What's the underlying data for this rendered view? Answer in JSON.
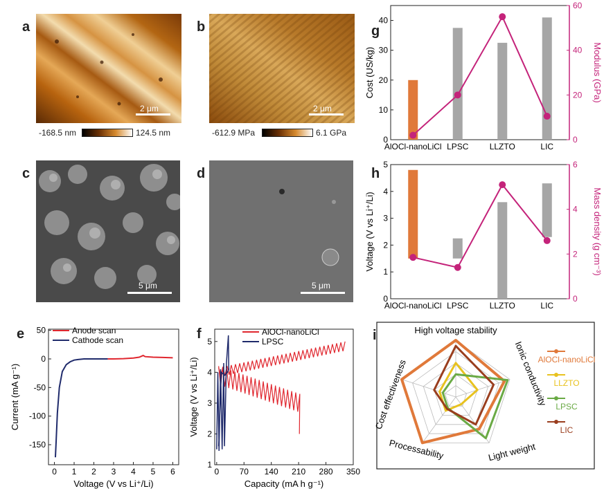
{
  "panels": {
    "a": {
      "label": "a",
      "scale": "2 μm",
      "cb_min": "-168.5 nm",
      "cb_max": "124.5 nm"
    },
    "b": {
      "label": "b",
      "scale": "2 μm",
      "cb_min": "-612.9 MPa",
      "cb_max": "6.1 GPa"
    },
    "c": {
      "label": "c",
      "scale": "5 μm"
    },
    "d": {
      "label": "d",
      "scale": "5 μm"
    },
    "e": {
      "label": "e"
    },
    "f": {
      "label": "f"
    },
    "g": {
      "label": "g"
    },
    "h": {
      "label": "h"
    },
    "i": {
      "label": "i"
    }
  },
  "colors": {
    "orange": "#E0793A",
    "grey": "#A6A6A6",
    "magenta": "#C4237A",
    "red": "#E0262E",
    "navy": "#1F2A6B",
    "yellow": "#E8C21F",
    "green": "#6AAA45",
    "brown": "#9A3E1E"
  },
  "chart_data": [
    {
      "id": "e",
      "type": "line",
      "xlabel": "Voltage (V vs Li⁺/Li)",
      "ylabel": "Current (mA g⁻¹)",
      "xlim": [
        -0.3,
        6.3
      ],
      "ylim": [
        -185,
        52
      ],
      "xticks": [
        0,
        1,
        2,
        3,
        4,
        5,
        6
      ],
      "yticks": [
        50,
        0,
        -50,
        -100,
        -150
      ],
      "series": [
        {
          "name": "Anode scan",
          "color": "#E0262E",
          "x": [
            2.7,
            3.0,
            3.5,
            4.0,
            4.3,
            4.5,
            4.6,
            5.0,
            5.5,
            6.0
          ],
          "y": [
            0,
            0,
            0.5,
            1.5,
            3,
            6,
            4,
            3,
            2.5,
            2
          ]
        },
        {
          "name": "Cathode scan",
          "color": "#1F2A6B",
          "x": [
            2.7,
            2.0,
            1.5,
            1.2,
            1.0,
            0.8,
            0.6,
            0.4,
            0.25,
            0.15,
            0.08,
            0.05
          ],
          "y": [
            0,
            0,
            0,
            -1,
            -2,
            -5,
            -10,
            -22,
            -50,
            -95,
            -150,
            -172
          ]
        }
      ]
    },
    {
      "id": "f",
      "type": "line",
      "xlabel": "Capacity (mA h g⁻¹)",
      "ylabel": "Voltage (V vs Li⁺/Li)",
      "xlim": [
        -5,
        350
      ],
      "ylim": [
        1,
        5.4
      ],
      "xticks": [
        0,
        70,
        140,
        210,
        280,
        350
      ],
      "yticks": [
        1,
        2,
        3,
        4,
        5
      ],
      "series": [
        {
          "name": "AlOCl-nanoLiCl",
          "color": "#E0262E"
        },
        {
          "name": "LPSC",
          "color": "#1F2A6B"
        }
      ]
    },
    {
      "id": "g",
      "type": "bar",
      "categories": [
        "AlOCl-nanoLiCl",
        "LPSC",
        "LLZTO",
        "LIC"
      ],
      "ylabel": "Cost (US/kg)",
      "y2label": "Modulus (GPa)",
      "ylim": [
        0,
        45
      ],
      "yticks": [
        0,
        10,
        20,
        30,
        40
      ],
      "y2lim": [
        0,
        60
      ],
      "y2ticks": [
        0,
        20,
        40,
        60
      ],
      "bars": [
        20,
        37.5,
        32.5,
        41
      ],
      "modulus": [
        2,
        20,
        55,
        10.5
      ]
    },
    {
      "id": "h",
      "type": "bar",
      "categories": [
        "AlOCl-nanoLiCl",
        "LPSC",
        "LLZTO",
        "LIC"
      ],
      "ylabel": "Voltage (V vs Li⁺/Li)",
      "y2label": "Mass density (g cm⁻³)",
      "ylim": [
        0,
        5
      ],
      "yticks": [
        0,
        1,
        2,
        3,
        4,
        5
      ],
      "y2lim": [
        0,
        6
      ],
      "y2ticks": [
        0,
        2,
        4,
        6
      ],
      "bar_low": [
        1.5,
        1.5,
        0,
        2.3
      ],
      "bar_high": [
        4.8,
        2.25,
        3.6,
        4.3
      ],
      "density": [
        1.85,
        1.4,
        5.1,
        2.6
      ]
    },
    {
      "id": "i",
      "type": "radar",
      "axes": [
        "High voltage stability",
        "Ionic conductivity",
        "Light weight",
        "Processability",
        "Cost effectiveness"
      ],
      "levels": 5,
      "series": [
        {
          "name": "AlOCl-nanoLiCl",
          "color": "#E0793A",
          "values": [
            5,
            4.5,
            3.5,
            5,
            5
          ]
        },
        {
          "name": "LLZTO",
          "color": "#E8C21F",
          "values": [
            3,
            2,
            0.8,
            1.5,
            1.5
          ]
        },
        {
          "name": "LPSC",
          "color": "#6AAA45",
          "values": [
            2,
            4.8,
            4.5,
            1.2,
            1.2
          ]
        },
        {
          "name": "LIC",
          "color": "#9A3E1E",
          "values": [
            4.5,
            3.5,
            3,
            1.3,
            2
          ]
        }
      ]
    }
  ]
}
